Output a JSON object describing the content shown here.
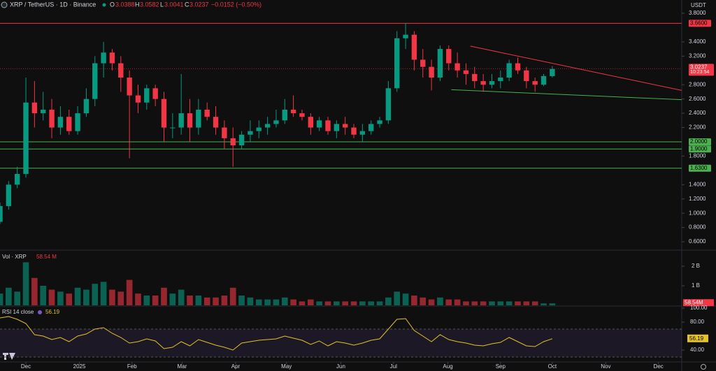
{
  "chart_data": {
    "type": "candlestick",
    "header": {
      "title": "XRP / TetherUS · 1D · Binance",
      "o_label": "O",
      "open": 3.0388,
      "h_label": "H",
      "high": 3.0582,
      "l_label": "L",
      "low": 3.0041,
      "c_label": "C",
      "close": 3.0237,
      "change": "−0.0152 (−0.50%)"
    },
    "currency": "USDT",
    "countdown": "10:23:54",
    "up_color": "#089981",
    "down_color": "#f23645",
    "x": [
      0,
      1,
      2,
      3,
      4,
      5,
      6,
      7,
      8,
      9,
      10,
      11,
      12,
      13,
      14,
      15,
      16,
      17,
      18,
      19,
      20,
      21,
      22,
      23,
      24,
      25,
      26,
      27,
      28,
      29,
      30,
      31,
      32,
      33,
      34,
      35,
      36,
      37,
      38,
      39,
      40,
      41,
      42,
      43,
      44,
      45,
      46,
      47,
      48,
      49,
      50,
      51,
      52,
      53,
      54,
      55,
      56,
      57,
      58,
      59,
      60,
      61,
      62,
      63,
      64
    ],
    "open": [
      0.88,
      1.1,
      1.4,
      1.55,
      2.55,
      2.4,
      2.45,
      2.2,
      2.35,
      2.15,
      2.4,
      2.6,
      3.1,
      3.25,
      3.1,
      2.9,
      2.65,
      2.55,
      2.75,
      2.6,
      2.2,
      2.2,
      2.4,
      2.2,
      2.45,
      2.35,
      2.2,
      2.05,
      1.95,
      2.1,
      2.15,
      2.2,
      2.25,
      2.3,
      2.45,
      2.4,
      2.35,
      2.2,
      2.3,
      2.15,
      2.25,
      2.2,
      2.1,
      2.15,
      2.25,
      2.3,
      2.75,
      3.45,
      3.5,
      3.15,
      3.05,
      2.9,
      3.3,
      3.1,
      3.0,
      2.95,
      2.85,
      2.8,
      2.85,
      2.9,
      3.1,
      3.0,
      2.85,
      2.8,
      2.92
    ],
    "high": [
      1.15,
      1.45,
      1.65,
      2.9,
      2.85,
      2.7,
      2.6,
      2.5,
      2.45,
      2.5,
      2.75,
      3.2,
      3.4,
      3.3,
      3.2,
      3.0,
      2.8,
      2.8,
      2.8,
      2.7,
      2.4,
      2.95,
      2.6,
      2.6,
      2.55,
      2.5,
      2.3,
      2.2,
      2.15,
      2.3,
      2.3,
      2.35,
      2.45,
      2.6,
      2.65,
      2.45,
      2.4,
      2.35,
      2.35,
      2.3,
      2.35,
      2.25,
      2.25,
      2.3,
      2.35,
      2.85,
      3.55,
      3.66,
      3.55,
      3.3,
      3.15,
      3.35,
      3.35,
      3.25,
      3.1,
      3.05,
      2.95,
      2.95,
      3.0,
      3.15,
      3.18,
      3.05,
      2.9,
      2.95,
      3.06
    ],
    "low": [
      0.85,
      1.05,
      1.35,
      1.5,
      2.2,
      2.3,
      2.05,
      2.1,
      2.1,
      2.1,
      2.35,
      2.5,
      2.9,
      3.0,
      2.7,
      1.77,
      2.4,
      2.45,
      2.5,
      2.0,
      2.05,
      2.1,
      2.0,
      2.1,
      2.3,
      2.1,
      1.9,
      1.65,
      1.9,
      2.0,
      2.05,
      2.1,
      2.2,
      2.25,
      2.35,
      2.3,
      2.1,
      2.15,
      2.1,
      2.05,
      2.1,
      2.05,
      2.0,
      2.1,
      2.2,
      2.25,
      2.7,
      3.3,
      3.0,
      2.9,
      2.72,
      2.85,
      3.0,
      2.9,
      2.8,
      2.75,
      2.7,
      2.75,
      2.75,
      2.85,
      2.95,
      2.75,
      2.7,
      2.78,
      2.9
    ],
    "close": [
      1.1,
      1.4,
      1.55,
      2.55,
      2.4,
      2.45,
      2.2,
      2.35,
      2.15,
      2.4,
      2.6,
      3.1,
      3.25,
      3.1,
      2.9,
      2.65,
      2.55,
      2.75,
      2.6,
      2.2,
      2.2,
      2.4,
      2.2,
      2.45,
      2.35,
      2.2,
      2.05,
      1.95,
      2.1,
      2.15,
      2.2,
      2.25,
      2.3,
      2.45,
      2.4,
      2.35,
      2.2,
      2.3,
      2.15,
      2.25,
      2.2,
      2.1,
      2.15,
      2.25,
      2.3,
      2.75,
      3.45,
      3.5,
      3.15,
      3.05,
      2.9,
      3.3,
      3.1,
      3.0,
      2.95,
      2.85,
      2.8,
      2.85,
      2.9,
      3.1,
      3.0,
      2.85,
      2.8,
      2.92,
      3.02
    ],
    "xlim": [
      0,
      79
    ],
    "xticks": [
      {
        "value": 3.0,
        "label": "Dec"
      },
      {
        "value": 9.2,
        "label": "2025"
      },
      {
        "value": 15.3,
        "label": "Feb"
      },
      {
        "value": 21.1,
        "label": "Mar"
      },
      {
        "value": 27.3,
        "label": "Apr"
      },
      {
        "value": 33.2,
        "label": "May"
      },
      {
        "value": 39.5,
        "label": "Jun"
      },
      {
        "value": 45.6,
        "label": "Jul"
      },
      {
        "value": 51.9,
        "label": "Aug"
      },
      {
        "value": 58.0,
        "label": "Sep"
      },
      {
        "value": 64.0,
        "label": "Oct"
      },
      {
        "value": 70.2,
        "label": "Nov"
      },
      {
        "value": 76.3,
        "label": "Dec"
      }
    ],
    "ylim": [
      0.493,
      3.986
    ],
    "yticks": [
      {
        "value": 3.8,
        "label": "3.8000"
      },
      {
        "value": 3.4,
        "label": "3.4000"
      },
      {
        "value": 3.2,
        "label": "3.2000"
      },
      {
        "value": 2.8,
        "label": "2.8000"
      },
      {
        "value": 2.6,
        "label": "2.6000"
      },
      {
        "value": 2.4,
        "label": "2.4000"
      },
      {
        "value": 2.2,
        "label": "2.2000"
      },
      {
        "value": 1.8,
        "label": "1.8000"
      },
      {
        "value": 1.4,
        "label": "1.4000"
      },
      {
        "value": 1.2,
        "label": "1.2000"
      },
      {
        "value": 1.0,
        "label": "1.0000"
      },
      {
        "value": 0.8,
        "label": "0.8000"
      },
      {
        "value": 0.6,
        "label": "0.6000"
      }
    ],
    "levels": [
      {
        "value": 3.66,
        "label": "3.6600",
        "color": "#f23645"
      },
      {
        "value": 2.0,
        "label": "2.0000",
        "color": "#4caf50"
      },
      {
        "value": 1.9,
        "label": "1.9000",
        "color": "#4caf50"
      },
      {
        "value": 1.63,
        "label": "1.6300",
        "color": "#4caf50"
      }
    ],
    "trendlines": [
      {
        "x": [
          54.5,
          79
        ],
        "y": [
          3.34,
          2.72
        ],
        "color": "#f23645"
      },
      {
        "x": [
          52.3,
          79
        ],
        "y": [
          2.73,
          2.59
        ],
        "color": "#4caf50"
      }
    ],
    "volume": {
      "name": "Vol · XRP",
      "last_label": "58.54 M",
      "axis_label": "58.54M",
      "values": [
        0.6,
        0.9,
        0.7,
        2.2,
        1.4,
        1.0,
        0.8,
        0.7,
        0.6,
        0.9,
        0.8,
        1.1,
        1.2,
        0.8,
        0.7,
        1.3,
        0.6,
        0.5,
        0.5,
        0.9,
        0.6,
        0.8,
        0.5,
        0.5,
        0.4,
        0.4,
        0.5,
        0.9,
        0.5,
        0.4,
        0.3,
        0.3,
        0.3,
        0.4,
        0.3,
        0.2,
        0.3,
        0.2,
        0.2,
        0.2,
        0.2,
        0.2,
        0.2,
        0.2,
        0.2,
        0.4,
        0.7,
        0.6,
        0.5,
        0.4,
        0.3,
        0.4,
        0.3,
        0.3,
        0.2,
        0.2,
        0.2,
        0.2,
        0.2,
        0.2,
        0.2,
        0.2,
        0.2,
        0.1,
        0.1
      ],
      "ylim": [
        0,
        2.75
      ],
      "yticks": [
        {
          "value": 2,
          "label": "2 B"
        },
        {
          "value": 1,
          "label": "1 B"
        }
      ]
    },
    "rsi": {
      "name": "RSI 14 close",
      "last": 56.19,
      "color": "#e6c229",
      "band": [
        30,
        70
      ],
      "band_color": "#7e57c2",
      "values": [
        86,
        88,
        84,
        78,
        62,
        60,
        55,
        58,
        52,
        60,
        63,
        70,
        72,
        64,
        58,
        50,
        52,
        56,
        53,
        42,
        44,
        52,
        46,
        55,
        51,
        47,
        44,
        40,
        50,
        52,
        54,
        55,
        56,
        60,
        57,
        54,
        48,
        53,
        46,
        52,
        50,
        47,
        50,
        54,
        56,
        70,
        84,
        85,
        68,
        60,
        52,
        62,
        55,
        52,
        50,
        47,
        46,
        49,
        51,
        58,
        52,
        46,
        45,
        52,
        56.19
      ],
      "ylim": [
        24,
        100
      ],
      "yticks": [
        {
          "value": 100,
          "label": "100.00"
        },
        {
          "value": 80,
          "label": "80.00"
        },
        {
          "value": 40,
          "label": "40.00"
        }
      ]
    }
  }
}
